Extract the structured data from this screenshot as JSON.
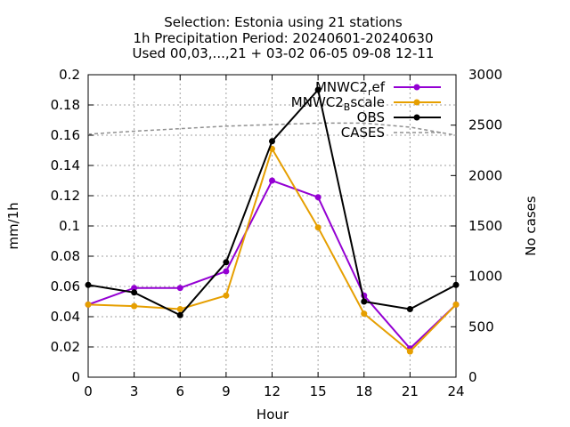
{
  "chart_data": {
    "type": "line",
    "title_lines": [
      "Selection: Estonia using     21 stations",
      "1h Precipitation    Period: 20240601-20240630",
      "Used 00,03,...,21 + 03-02 06-05 09-08 12-11"
    ],
    "xlabel": "Hour",
    "ylabel": "mm/1h",
    "y2label": "No cases",
    "x": [
      0,
      3,
      6,
      9,
      12,
      15,
      18,
      21,
      24
    ],
    "xticks": [
      "0",
      "3",
      "6",
      "9",
      "12",
      "15",
      "18",
      "21",
      "24"
    ],
    "xlim": [
      0,
      24
    ],
    "ylim": [
      0,
      0.2
    ],
    "yticks": [
      "0",
      "0.02",
      "0.04",
      "0.06",
      "0.08",
      "0.1",
      "0.12",
      "0.14",
      "0.16",
      "0.18",
      "0.2"
    ],
    "y2lim": [
      0,
      3000
    ],
    "y2ticks": [
      "0",
      "500",
      "1000",
      "1500",
      "2000",
      "2500",
      "3000"
    ],
    "grid": true,
    "legend_position": "top-right",
    "series": [
      {
        "name": "MNWC2",
        "sub": "r",
        "suffix": "ef",
        "color": "#9400d3",
        "marker": "circle",
        "values": [
          0.048,
          0.059,
          0.059,
          0.07,
          0.13,
          0.119,
          0.054,
          0.019,
          0.048
        ]
      },
      {
        "name": "MNWC2",
        "sub": "B",
        "suffix": "scale",
        "color": "#e69f00",
        "marker": "circle",
        "values": [
          0.048,
          0.047,
          0.045,
          0.054,
          0.151,
          0.099,
          0.042,
          0.017,
          0.048
        ]
      },
      {
        "name": "OBS",
        "sub": "",
        "suffix": "",
        "color": "#000000",
        "marker": "circle",
        "values": [
          0.061,
          0.056,
          0.041,
          0.076,
          0.156,
          0.19,
          0.05,
          0.045,
          0.061
        ]
      },
      {
        "name": "CASES",
        "sub": "",
        "suffix": "",
        "color": "#909090",
        "dashed": true,
        "axis": "y2",
        "x": [
          0,
          3,
          6,
          9,
          12,
          15,
          18,
          21,
          24
        ],
        "values": [
          2410,
          2440,
          2465,
          2490,
          2505,
          2520,
          2520,
          2480,
          2400
        ]
      }
    ]
  }
}
